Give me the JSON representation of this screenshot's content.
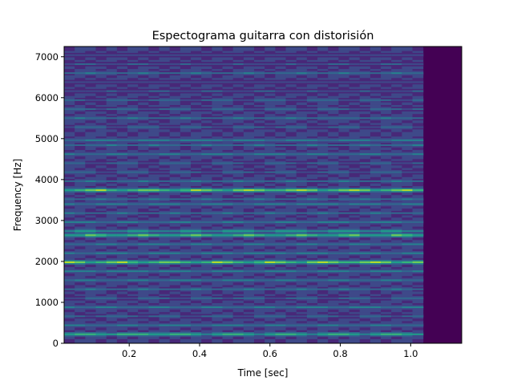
{
  "chart_data": {
    "type": "heatmap",
    "title": "Espectograma guitarra con distorisión",
    "xlabel": "Time [sec]",
    "ylabel": "Frequency [Hz]",
    "xlim": [
      0.015,
      1.145
    ],
    "ylim": [
      0,
      7250
    ],
    "signal_end_time": 1.03,
    "time_bin_width": 0.03,
    "x_ticks": [
      {
        "value": 0.2,
        "label": "0.2"
      },
      {
        "value": 0.4,
        "label": "0.4"
      },
      {
        "value": 0.6,
        "label": "0.6"
      },
      {
        "value": 0.8,
        "label": "0.8"
      },
      {
        "value": 1.0,
        "label": "1.0"
      }
    ],
    "y_ticks": [
      {
        "value": 0,
        "label": "0"
      },
      {
        "value": 1000,
        "label": "1000"
      },
      {
        "value": 2000,
        "label": "2000"
      },
      {
        "value": 3000,
        "label": "3000"
      },
      {
        "value": 4000,
        "label": "4000"
      },
      {
        "value": 5000,
        "label": "5000"
      },
      {
        "value": 6000,
        "label": "6000"
      },
      {
        "value": 7000,
        "label": "7000"
      }
    ],
    "colormap": [
      "#440154",
      "#482878",
      "#3e4989",
      "#31688e",
      "#26828e",
      "#1f9e89",
      "#35b779",
      "#6ece58",
      "#b5de2b",
      "#fde725"
    ],
    "background_color": "#440154",
    "frequency_bands": [
      {
        "frequency": 220,
        "intensity": 0.7
      },
      {
        "frequency": 440,
        "intensity": 0.45
      },
      {
        "frequency": 660,
        "intensity": 0.35
      },
      {
        "frequency": 880,
        "intensity": 0.45
      },
      {
        "frequency": 1100,
        "intensity": 0.35
      },
      {
        "frequency": 1320,
        "intensity": 0.4
      },
      {
        "frequency": 1540,
        "intensity": 0.45
      },
      {
        "frequency": 1760,
        "intensity": 0.5
      },
      {
        "frequency": 1980,
        "intensity": 0.85
      },
      {
        "frequency": 2200,
        "intensity": 0.5
      },
      {
        "frequency": 2420,
        "intensity": 0.45
      },
      {
        "frequency": 2640,
        "intensity": 0.75
      },
      {
        "frequency": 2740,
        "intensity": 0.6
      },
      {
        "frequency": 2960,
        "intensity": 0.45
      },
      {
        "frequency": 3180,
        "intensity": 0.4
      },
      {
        "frequency": 3400,
        "intensity": 0.5
      },
      {
        "frequency": 3520,
        "intensity": 0.4
      },
      {
        "frequency": 3740,
        "intensity": 0.85
      },
      {
        "frequency": 3960,
        "intensity": 0.4
      },
      {
        "frequency": 4180,
        "intensity": 0.35
      },
      {
        "frequency": 4400,
        "intensity": 0.35
      },
      {
        "frequency": 4620,
        "intensity": 0.45
      },
      {
        "frequency": 4840,
        "intensity": 0.4
      },
      {
        "frequency": 4960,
        "intensity": 0.5
      },
      {
        "frequency": 5280,
        "intensity": 0.35
      },
      {
        "frequency": 5500,
        "intensity": 0.4
      },
      {
        "frequency": 5720,
        "intensity": 0.35
      },
      {
        "frequency": 5940,
        "intensity": 0.35
      },
      {
        "frequency": 6160,
        "intensity": 0.3
      },
      {
        "frequency": 6380,
        "intensity": 0.25
      },
      {
        "frequency": 6600,
        "intensity": 0.4
      },
      {
        "frequency": 6820,
        "intensity": 0.3
      },
      {
        "frequency": 7040,
        "intensity": 0.25
      }
    ],
    "grid": false,
    "legend": "none"
  }
}
